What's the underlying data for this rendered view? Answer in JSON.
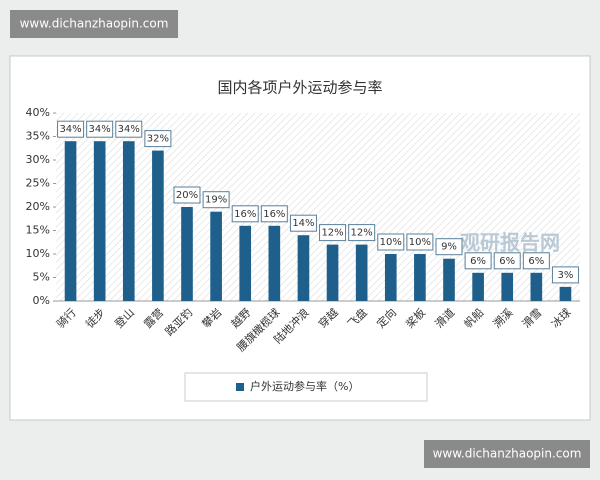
{
  "watermarks": [
    "www.dichanzhaopin.com",
    "www.dichanzhaopin.com",
    "观研报告网"
  ],
  "chart_data": {
    "type": "bar",
    "title": "国内各项户外运动参与率",
    "categories": [
      "骑行",
      "徒步",
      "登山",
      "露营",
      "路亚钓",
      "攀岩",
      "越野",
      "腰旗橄榄球",
      "陆地冲浪",
      "穿越",
      "飞盘",
      "定向",
      "桨板",
      "滑道",
      "帆船",
      "溯溪",
      "滑雪",
      "冰球"
    ],
    "series": [
      {
        "name": "户外运动参与率（%）",
        "color": "#1f5f8b",
        "values": [
          34,
          34,
          34,
          32,
          20,
          19,
          16,
          16,
          14,
          12,
          12,
          10,
          10,
          9,
          6,
          6,
          6,
          3
        ],
        "value_labels": [
          "34%",
          "34%",
          "34%",
          "32%",
          "20%",
          "19%",
          "16%",
          "16%",
          "14%",
          "12%",
          "12%",
          "10%",
          "10%",
          "9%",
          "6%",
          "6%",
          "6%",
          "3%"
        ]
      }
    ],
    "ylim": [
      0,
      40
    ],
    "yticks": [
      {
        "value": 0,
        "label": "0%"
      },
      {
        "value": 5,
        "label": "5%"
      },
      {
        "value": 10,
        "label": "10%"
      },
      {
        "value": 15,
        "label": "15%"
      },
      {
        "value": 20,
        "label": "20%"
      },
      {
        "value": 25,
        "label": "25%"
      },
      {
        "value": 30,
        "label": "30%"
      },
      {
        "value": 35,
        "label": "35%"
      },
      {
        "value": 40,
        "label": "40%"
      }
    ],
    "legend": "bottom"
  }
}
